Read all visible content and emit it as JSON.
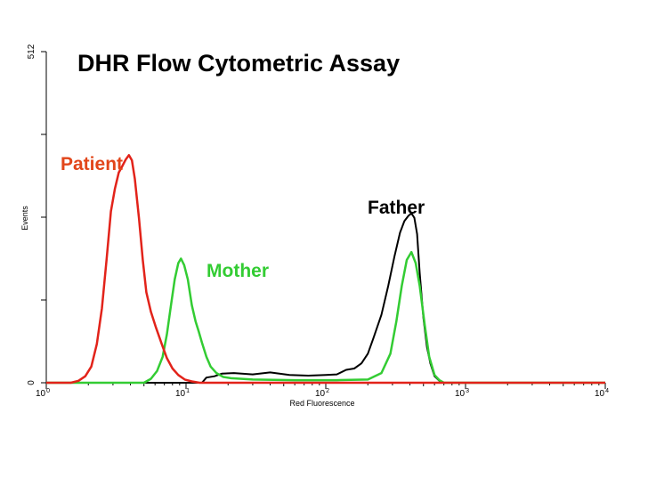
{
  "chart_data": {
    "type": "line",
    "title": "DHR Flow Cytometric Assay",
    "xlabel": "Red Fluorescence",
    "ylabel": "Events",
    "x_scale": "log",
    "xlim": [
      1,
      10000
    ],
    "ylim": [
      0,
      512
    ],
    "x_ticks": [
      {
        "base": "10",
        "exp": "0"
      },
      {
        "base": "10",
        "exp": "1"
      },
      {
        "base": "10",
        "exp": "2"
      },
      {
        "base": "10",
        "exp": "3"
      },
      {
        "base": "10",
        "exp": "4"
      }
    ],
    "y_ticks": [
      "0",
      "512"
    ],
    "grid": false,
    "legend": "inline labels",
    "series": [
      {
        "name": "Patient",
        "color": "#e2231a",
        "points": [
          [
            1.0,
            0
          ],
          [
            1.5,
            0
          ],
          [
            1.7,
            3
          ],
          [
            1.9,
            10
          ],
          [
            2.1,
            25
          ],
          [
            2.3,
            60
          ],
          [
            2.5,
            115
          ],
          [
            2.7,
            190
          ],
          [
            2.9,
            265
          ],
          [
            3.1,
            300
          ],
          [
            3.3,
            325
          ],
          [
            3.5,
            335
          ],
          [
            3.7,
            345
          ],
          [
            3.9,
            352
          ],
          [
            4.1,
            344
          ],
          [
            4.3,
            315
          ],
          [
            4.6,
            255
          ],
          [
            4.9,
            190
          ],
          [
            5.2,
            140
          ],
          [
            5.6,
            110
          ],
          [
            6.1,
            85
          ],
          [
            6.7,
            60
          ],
          [
            7.3,
            38
          ],
          [
            8.0,
            22
          ],
          [
            8.8,
            12
          ],
          [
            9.8,
            5
          ],
          [
            11.0,
            2
          ],
          [
            12.5,
            0
          ],
          [
            700,
            0
          ],
          [
            10000,
            0
          ]
        ]
      },
      {
        "name": "Mother",
        "color": "#33cc33",
        "points": [
          [
            1.0,
            0
          ],
          [
            5.0,
            0
          ],
          [
            5.6,
            6
          ],
          [
            6.2,
            18
          ],
          [
            6.8,
            40
          ],
          [
            7.3,
            75
          ],
          [
            7.8,
            120
          ],
          [
            8.3,
            160
          ],
          [
            8.8,
            185
          ],
          [
            9.2,
            192
          ],
          [
            9.7,
            182
          ],
          [
            10.3,
            160
          ],
          [
            11.0,
            120
          ],
          [
            11.7,
            95
          ],
          [
            12.3,
            80
          ],
          [
            13.0,
            62
          ],
          [
            14.0,
            40
          ],
          [
            15.0,
            25
          ],
          [
            16.5,
            15
          ],
          [
            18.5,
            9
          ],
          [
            21.0,
            7
          ],
          [
            30.0,
            5
          ],
          [
            60.0,
            4
          ],
          [
            120,
            4
          ],
          [
            200,
            5
          ],
          [
            250,
            15
          ],
          [
            290,
            45
          ],
          [
            320,
            95
          ],
          [
            350,
            150
          ],
          [
            380,
            190
          ],
          [
            410,
            202
          ],
          [
            440,
            185
          ],
          [
            470,
            150
          ],
          [
            510,
            90
          ],
          [
            550,
            40
          ],
          [
            600,
            12
          ],
          [
            650,
            4
          ],
          [
            700,
            0
          ],
          [
            10000,
            0
          ]
        ]
      },
      {
        "name": "Father",
        "color": "#000000",
        "points": [
          [
            1.0,
            0
          ],
          [
            13.0,
            0
          ],
          [
            14.0,
            8
          ],
          [
            16.0,
            10
          ],
          [
            18.0,
            14
          ],
          [
            22.0,
            15
          ],
          [
            30.0,
            13
          ],
          [
            40.0,
            16
          ],
          [
            55.0,
            12
          ],
          [
            75.0,
            11
          ],
          [
            100,
            12
          ],
          [
            120,
            13
          ],
          [
            140,
            20
          ],
          [
            160,
            22
          ],
          [
            180,
            30
          ],
          [
            200,
            45
          ],
          [
            220,
            70
          ],
          [
            250,
            105
          ],
          [
            280,
            150
          ],
          [
            310,
            195
          ],
          [
            340,
            232
          ],
          [
            365,
            250
          ],
          [
            390,
            258
          ],
          [
            410,
            262
          ],
          [
            430,
            255
          ],
          [
            450,
            230
          ],
          [
            470,
            170
          ],
          [
            500,
            100
          ],
          [
            530,
            55
          ],
          [
            560,
            30
          ],
          [
            600,
            10
          ],
          [
            650,
            3
          ],
          [
            700,
            0
          ],
          [
            10000,
            0
          ]
        ]
      }
    ]
  }
}
